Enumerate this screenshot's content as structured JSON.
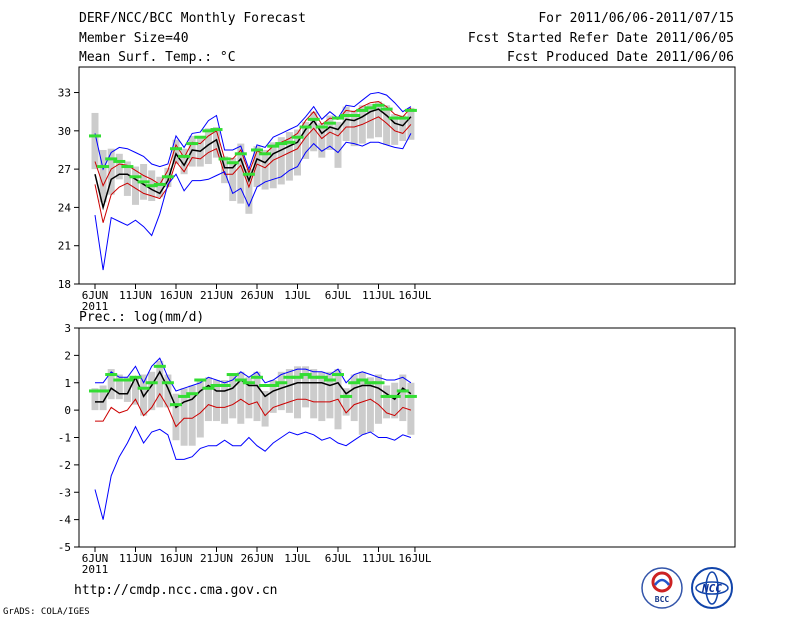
{
  "header": {
    "left": [
      "DERF/NCC/BCC Monthly Forecast",
      "Member Size=40",
      "Mean Surf. Temp.: °C"
    ],
    "right": [
      "For 2011/06/06-2011/07/15",
      "Fcst Started Refer Date 2011/06/05",
      "Fcst Produced Date 2011/06/06"
    ]
  },
  "footer": {
    "url": "http://cmdp.ncc.cma.gov.cn",
    "grads": "GrADS: COLA/IGES",
    "logo_bcc_label": "BCC",
    "logo_ncc_label": "NCC"
  },
  "colors": {
    "ensemble_mean": "#000000",
    "bound": "#0000ff",
    "lower_line": "#cc0000",
    "green_dash": "#33dd33",
    "box": "#cccccc"
  },
  "chart_data": [
    {
      "type": "line",
      "title": "Mean Surf. Temp.: °C",
      "days": 40,
      "ylim": [
        18,
        35
      ],
      "yticks": [
        18,
        21,
        24,
        27,
        30,
        33
      ],
      "xticks": [
        {
          "day": 0,
          "label": "6JUN",
          "sub": "2011"
        },
        {
          "day": 5,
          "label": "11JUN"
        },
        {
          "day": 10,
          "label": "16JUN"
        },
        {
          "day": 15,
          "label": "21JUN"
        },
        {
          "day": 20,
          "label": "26JUN"
        },
        {
          "day": 25,
          "label": "1JUL"
        },
        {
          "day": 30,
          "label": "6JUL"
        },
        {
          "day": 35,
          "label": "11JUL"
        },
        {
          "day": 39.5,
          "label": "16JUL"
        }
      ],
      "series": [
        {
          "name": "upper",
          "values": [
            29.8,
            27.0,
            28.3,
            28.7,
            28.6,
            28.3,
            28.0,
            27.4,
            27.2,
            27.4,
            29.6,
            28.7,
            29.8,
            29.9,
            30.8,
            31.2,
            28.5,
            28.5,
            28.8,
            27.0,
            28.9,
            28.7,
            29.5,
            29.8,
            30.1,
            30.4,
            31.1,
            31.9,
            30.9,
            31.5,
            31.0,
            32.0,
            31.9,
            32.4,
            32.9,
            33.0,
            32.8,
            32.2,
            31.5,
            31.9
          ]
        },
        {
          "name": "ensemble_mean",
          "values": [
            26.6,
            24.0,
            26.2,
            26.6,
            26.6,
            26.2,
            25.8,
            25.4,
            25.1,
            26.1,
            28.2,
            27.3,
            28.5,
            28.4,
            28.9,
            29.3,
            27.1,
            27.1,
            27.8,
            26.1,
            27.8,
            27.5,
            28.2,
            28.5,
            28.8,
            29.1,
            30.1,
            30.8,
            29.8,
            30.3,
            30.1,
            30.9,
            30.8,
            31.1,
            31.5,
            31.7,
            31.2,
            30.6,
            30.4,
            31.1
          ]
        },
        {
          "name": "red_upper",
          "values": [
            27.6,
            25.7,
            27.0,
            27.4,
            27.3,
            26.9,
            26.5,
            26.2,
            25.8,
            26.9,
            28.9,
            27.9,
            29.1,
            29.0,
            29.6,
            30.0,
            27.8,
            27.8,
            28.5,
            26.7,
            28.4,
            28.2,
            28.8,
            29.1,
            29.4,
            29.8,
            30.8,
            31.5,
            30.5,
            31.0,
            30.9,
            31.6,
            31.5,
            31.9,
            32.2,
            32.3,
            31.9,
            31.3,
            31.1,
            31.8
          ]
        },
        {
          "name": "red_lower",
          "values": [
            25.8,
            22.8,
            25.0,
            25.6,
            25.9,
            25.5,
            25.1,
            24.9,
            24.7,
            25.6,
            27.6,
            26.8,
            27.9,
            27.8,
            28.3,
            28.6,
            26.6,
            26.6,
            27.3,
            25.6,
            27.4,
            27.1,
            27.7,
            28.0,
            28.3,
            28.6,
            29.5,
            30.2,
            29.4,
            29.9,
            29.6,
            30.3,
            30.3,
            30.5,
            30.8,
            31.1,
            30.6,
            30.0,
            29.8,
            30.5
          ]
        },
        {
          "name": "lower",
          "values": [
            23.4,
            19.1,
            23.2,
            22.9,
            22.6,
            23.0,
            22.5,
            21.8,
            23.5,
            25.8,
            26.6,
            25.3,
            26.1,
            26.1,
            26.2,
            26.5,
            26.8,
            25.1,
            25.5,
            24.1,
            25.6,
            26.0,
            26.2,
            26.4,
            26.9,
            27.2,
            28.3,
            29.0,
            28.4,
            28.8,
            28.3,
            29.1,
            29.0,
            28.8,
            29.1,
            29.1,
            28.9,
            28.7,
            28.6,
            29.8
          ]
        },
        {
          "name": "green_dash",
          "values": [
            29.6,
            27.2,
            27.8,
            27.6,
            27.2,
            26.4,
            26.0,
            25.7,
            25.8,
            26.4,
            28.6,
            28.0,
            29.0,
            29.5,
            30.0,
            30.1,
            27.8,
            27.5,
            28.2,
            26.6,
            28.5,
            28.2,
            28.8,
            29.0,
            29.1,
            29.5,
            30.3,
            30.9,
            30.3,
            30.6,
            31.0,
            31.2,
            31.2,
            31.6,
            31.8,
            32.0,
            31.7,
            31.0,
            31.0,
            31.6
          ]
        }
      ],
      "box_top": [
        31.4,
        28.5,
        28.6,
        28.2,
        27.6,
        27.2,
        27.4,
        26.9,
        26.4,
        27.1,
        29.3,
        28.6,
        29.6,
        29.5,
        30.2,
        30.3,
        28.0,
        27.9,
        29.0,
        27.0,
        28.8,
        28.5,
        29.1,
        29.5,
        29.9,
        30.1,
        30.7,
        31.5,
        30.6,
        31.2,
        30.7,
        31.9,
        31.6,
        32.0,
        32.1,
        32.3,
        32.0,
        31.3,
        31.2,
        31.8
      ],
      "box_bottom": [
        27.0,
        24.4,
        25.0,
        26.2,
        24.9,
        24.2,
        24.6,
        24.5,
        24.8,
        25.6,
        27.4,
        26.6,
        27.2,
        27.2,
        27.4,
        27.9,
        25.9,
        24.5,
        24.3,
        23.5,
        25.6,
        25.4,
        25.5,
        25.8,
        26.1,
        26.5,
        27.8,
        28.4,
        27.9,
        28.5,
        27.1,
        29.2,
        28.8,
        29.0,
        29.4,
        29.5,
        28.9,
        28.9,
        29.2,
        29.3
      ]
    },
    {
      "type": "line",
      "title": "Prec.: log(mm/d)",
      "days": 40,
      "ylim": [
        -5,
        3
      ],
      "yticks": [
        -5,
        -4,
        -3,
        -2,
        -1,
        0,
        1,
        2,
        3
      ],
      "xticks": [
        {
          "day": 0,
          "label": "6JUN",
          "sub": "2011"
        },
        {
          "day": 5,
          "label": "11JUN"
        },
        {
          "day": 10,
          "label": "16JUN"
        },
        {
          "day": 15,
          "label": "21JUN"
        },
        {
          "day": 20,
          "label": "26JUN"
        },
        {
          "day": 25,
          "label": "1JUL"
        },
        {
          "day": 30,
          "label": "6JUL"
        },
        {
          "day": 35,
          "label": "11JUL"
        },
        {
          "day": 39.5,
          "label": "16JUL"
        }
      ],
      "series": [
        {
          "name": "upper",
          "values": [
            1.0,
            1.0,
            1.4,
            1.2,
            1.2,
            1.6,
            1.0,
            1.6,
            1.9,
            1.2,
            0.7,
            0.8,
            0.9,
            1.0,
            1.2,
            1.1,
            1.0,
            1.1,
            1.4,
            1.2,
            1.4,
            1.0,
            1.1,
            1.3,
            1.4,
            1.5,
            1.5,
            1.4,
            1.4,
            1.3,
            1.5,
            1.0,
            1.3,
            1.4,
            1.3,
            1.2,
            1.1,
            1.1,
            1.2,
            1.0
          ]
        },
        {
          "name": "ensemble_mean",
          "values": [
            0.3,
            0.3,
            0.8,
            0.6,
            0.6,
            1.2,
            0.5,
            0.9,
            1.4,
            0.8,
            0.1,
            0.3,
            0.4,
            0.7,
            0.9,
            0.7,
            0.7,
            0.8,
            1.1,
            0.9,
            0.9,
            0.5,
            0.7,
            0.8,
            0.9,
            1.0,
            1.0,
            1.0,
            1.0,
            0.9,
            1.0,
            0.6,
            0.8,
            0.9,
            0.9,
            0.8,
            0.6,
            0.4,
            0.8,
            0.6
          ]
        },
        {
          "name": "red_lower",
          "values": [
            -0.4,
            -0.4,
            0.1,
            -0.1,
            0.0,
            0.4,
            -0.2,
            0.1,
            0.6,
            0.1,
            -0.6,
            -0.3,
            -0.3,
            -0.1,
            0.2,
            0.1,
            0.1,
            0.2,
            0.4,
            0.2,
            0.3,
            -0.2,
            0.1,
            0.2,
            0.3,
            0.4,
            0.4,
            0.3,
            0.3,
            0.3,
            0.4,
            -0.1,
            0.2,
            0.3,
            0.4,
            0.2,
            -0.1,
            -0.2,
            0.1,
            0.0
          ]
        },
        {
          "name": "lower",
          "values": [
            -2.9,
            -4.0,
            -2.4,
            -1.7,
            -1.2,
            -0.6,
            -1.2,
            -0.8,
            -0.7,
            -0.9,
            -1.8,
            -1.8,
            -1.7,
            -1.4,
            -1.3,
            -1.3,
            -1.1,
            -1.3,
            -1.3,
            -1.0,
            -1.3,
            -1.5,
            -1.2,
            -1.0,
            -0.8,
            -0.9,
            -0.8,
            -0.9,
            -1.1,
            -1.0,
            -1.2,
            -1.3,
            -1.1,
            -0.9,
            -0.8,
            -1.0,
            -1.0,
            -1.1,
            -0.9,
            -1.0
          ]
        },
        {
          "name": "green_dash",
          "values": [
            0.7,
            0.7,
            1.3,
            1.1,
            1.1,
            1.2,
            0.8,
            1.0,
            1.6,
            1.0,
            0.2,
            0.5,
            0.6,
            1.1,
            0.8,
            0.9,
            0.9,
            1.3,
            1.1,
            1.0,
            1.2,
            0.9,
            0.9,
            1.0,
            1.2,
            1.2,
            1.3,
            1.2,
            1.2,
            1.1,
            1.3,
            0.5,
            1.0,
            1.1,
            1.0,
            1.0,
            0.5,
            0.5,
            0.7,
            0.5
          ]
        }
      ],
      "box_top": [
        0.8,
        0.9,
        1.5,
        1.3,
        1.2,
        1.2,
        1.3,
        1.4,
        1.8,
        1.3,
        0.6,
        0.8,
        0.9,
        1.1,
        1.2,
        1.1,
        1.1,
        1.3,
        1.4,
        1.2,
        1.4,
        0.7,
        1.1,
        1.4,
        1.5,
        1.6,
        1.6,
        1.5,
        1.4,
        1.4,
        1.5,
        0.8,
        1.3,
        1.4,
        1.2,
        1.3,
        0.9,
        1.0,
        1.3,
        1.0
      ],
      "box_bottom": [
        0.0,
        0.0,
        0.4,
        0.4,
        0.3,
        0.2,
        -0.2,
        0.0,
        0.1,
        0.1,
        -1.1,
        -1.3,
        -1.3,
        -1.0,
        -0.4,
        -0.4,
        -0.5,
        -0.3,
        -0.5,
        -0.3,
        -0.4,
        -0.6,
        -0.1,
        0.0,
        -0.1,
        -0.3,
        0.1,
        -0.3,
        -0.4,
        -0.3,
        -0.7,
        -0.2,
        -0.4,
        -0.9,
        -0.8,
        -0.5,
        -0.3,
        -0.3,
        -0.4,
        -0.9
      ]
    }
  ]
}
